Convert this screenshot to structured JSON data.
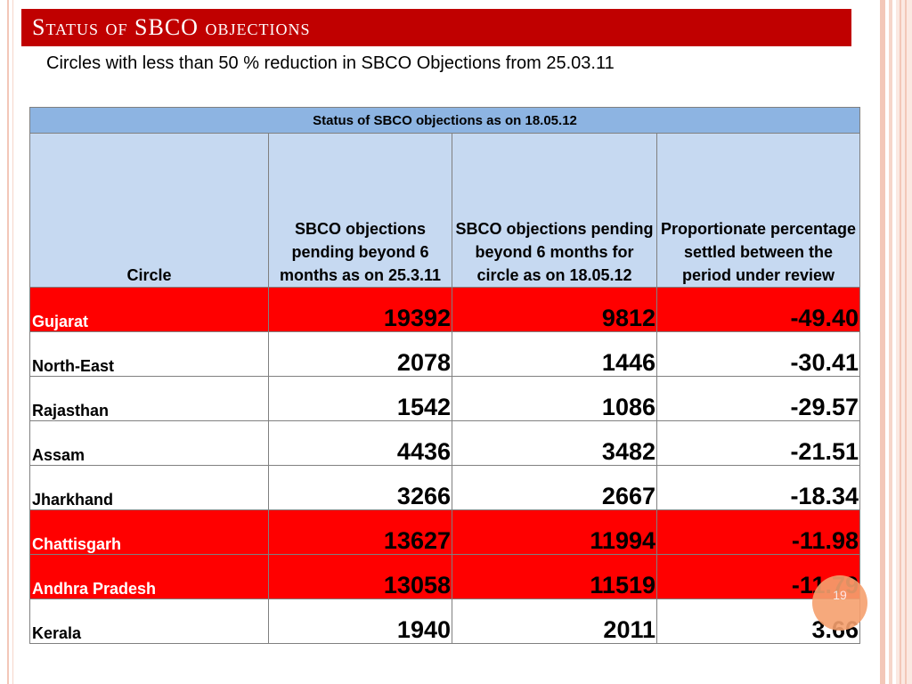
{
  "slide": {
    "title": "Status of SBCO objections",
    "subtitle": "Circles with less than 50 % reduction in SBCO Objections from 25.03.11",
    "slide_number": "19"
  },
  "table": {
    "caption": "Status of SBCO objections as on 18.05.12",
    "columns": [
      "Circle",
      "SBCO objections pending beyond 6 months as on 25.3.11",
      "SBCO objections pending beyond 6 months for circle as on 18.05.12",
      "Proportionate percentage settled between the period under review"
    ],
    "rows": [
      {
        "circle": "Gujarat",
        "pending_2011": "19392",
        "pending_2012": "9812",
        "percent": "-49.40",
        "highlight": "red"
      },
      {
        "circle": "North-East",
        "pending_2011": "2078",
        "pending_2012": "1446",
        "percent": "-30.41",
        "highlight": "none"
      },
      {
        "circle": "Rajasthan",
        "pending_2011": "1542",
        "pending_2012": "1086",
        "percent": "-29.57",
        "highlight": "none"
      },
      {
        "circle": "Assam",
        "pending_2011": "4436",
        "pending_2012": "3482",
        "percent": "-21.51",
        "highlight": "none"
      },
      {
        "circle": "Jharkhand",
        "pending_2011": "3266",
        "pending_2012": "2667",
        "percent": "-18.34",
        "highlight": "none"
      },
      {
        "circle": "Chattisgarh",
        "pending_2011": "13627",
        "pending_2012": "11994",
        "percent": "-11.98",
        "highlight": "red"
      },
      {
        "circle": "Andhra Pradesh",
        "pending_2011": "13058",
        "pending_2012": "11519",
        "percent": "-11.79",
        "highlight": "red"
      },
      {
        "circle": "Kerala",
        "pending_2011": "1940",
        "pending_2012": "2011",
        "percent": "3.66",
        "highlight": "none"
      }
    ]
  },
  "colors": {
    "title_bar": "#c00000",
    "header_top": "#8db4e2",
    "header_cols": "#c6d9f1",
    "highlight_red": "#ff0000",
    "badge": "#f6a06e"
  }
}
